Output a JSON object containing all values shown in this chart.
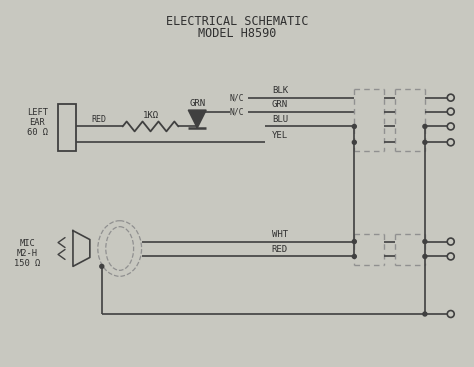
{
  "title_line1": "ELECTRICAL SCHEMATIC",
  "title_line2": "MODEL H8590",
  "bg_color": "#c8c8c0",
  "line_color": "#404040",
  "text_color": "#303030",
  "dashed_color": "#909090",
  "figsize": [
    4.74,
    3.67
  ],
  "dpi": 100,
  "resistor_label": "1KΩ",
  "grn_label": "GRN",
  "red_label": "RED",
  "left_ear_label": [
    "LEFT",
    "EAR",
    "60 Ω"
  ],
  "mic_label": [
    "MIC",
    "M2-H",
    "150 Ω"
  ],
  "wire_labels": [
    "BLK",
    "GRN",
    "BLU",
    "YEL",
    "WHT",
    "RED"
  ],
  "nc_labels": [
    "N/C",
    "N/C"
  ]
}
